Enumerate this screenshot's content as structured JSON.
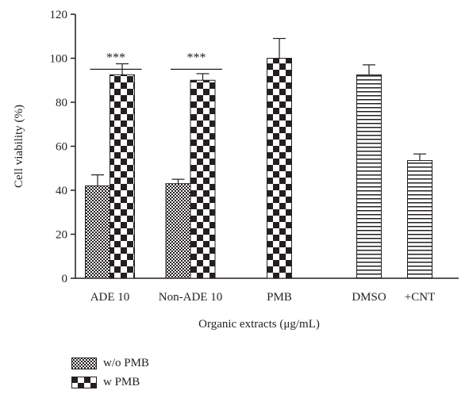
{
  "chart_data": {
    "type": "bar",
    "categories": [
      "ADE 10",
      "Non-ADE 10",
      "PMB",
      "DMSO",
      "+CNT"
    ],
    "series": [
      {
        "name": "w/o PMB",
        "pattern": "fine-checker",
        "values": [
          42,
          43,
          null,
          null,
          null
        ],
        "errors": [
          5,
          2,
          null,
          null,
          null
        ]
      },
      {
        "name": "w PMB",
        "pattern": "coarse-checker",
        "values": [
          92.5,
          90,
          100,
          null,
          null
        ],
        "errors": [
          5,
          3,
          9,
          null,
          null
        ]
      },
      {
        "name": "",
        "pattern": "horizontal-stripes",
        "values": [
          null,
          null,
          null,
          92.5,
          53.5
        ],
        "errors": [
          null,
          null,
          null,
          4.5,
          3
        ]
      }
    ],
    "significance": [
      {
        "category": "ADE 10",
        "label": "***"
      },
      {
        "category": "Non-ADE 10",
        "label": "***"
      }
    ],
    "xlabel": "Organic extracts (μg/mL)",
    "ylabel": "Cell viability (%)",
    "ylim": [
      0,
      120
    ],
    "yticks": [
      0,
      20,
      40,
      60,
      80,
      100,
      120
    ],
    "grid": false,
    "legend_position": "bottom-left",
    "colors": {
      "ink": "#231f20",
      "fill": "#ffffff"
    }
  }
}
